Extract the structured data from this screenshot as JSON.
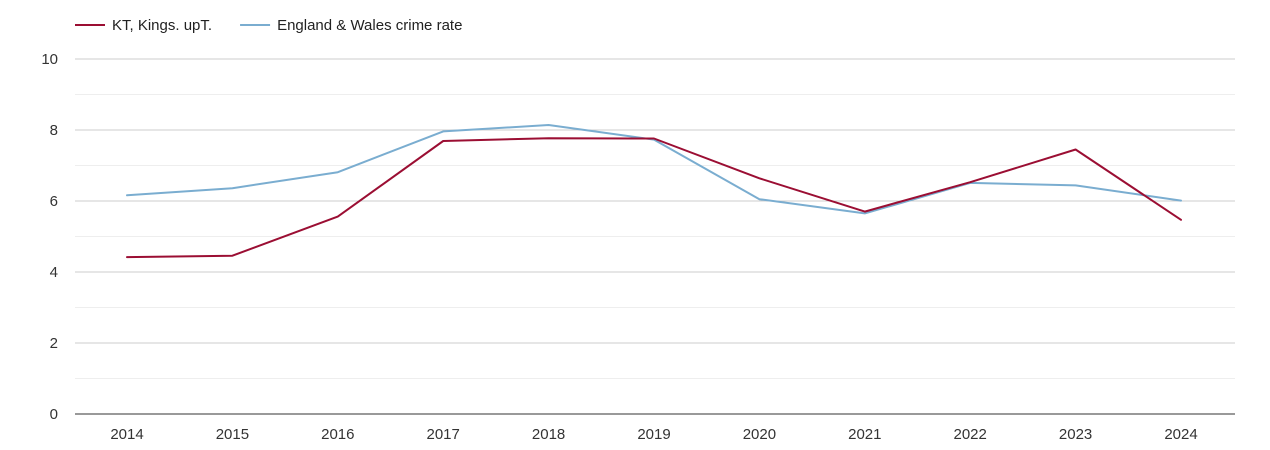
{
  "chart_data": {
    "type": "line",
    "categories": [
      "2014",
      "2015",
      "2016",
      "2017",
      "2018",
      "2019",
      "2020",
      "2021",
      "2022",
      "2023",
      "2024"
    ],
    "series": [
      {
        "name": "KT, Kings. upT.",
        "color": "#9b0e33",
        "values": [
          4.42,
          4.46,
          5.56,
          7.69,
          7.77,
          7.76,
          6.64,
          5.7,
          6.53,
          7.45,
          5.47
        ]
      },
      {
        "name": "England & Wales crime rate",
        "color": "#7aadd0",
        "values": [
          6.16,
          6.36,
          6.81,
          7.96,
          8.14,
          7.73,
          6.05,
          5.65,
          6.51,
          6.44,
          6.01
        ]
      }
    ],
    "y_ticks": [
      "0",
      "2",
      "4",
      "6",
      "8",
      "10"
    ],
    "ylim": [
      0,
      10
    ],
    "grid": true,
    "legend_position": "top-left",
    "title": "",
    "xlabel": "",
    "ylabel": ""
  }
}
